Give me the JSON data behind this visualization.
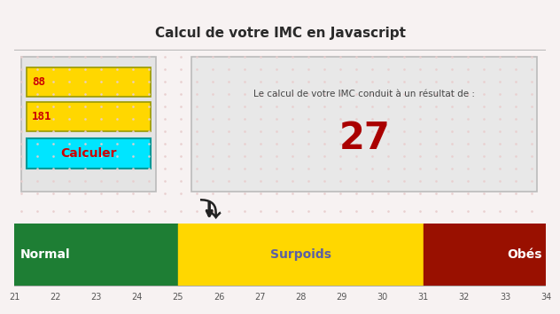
{
  "title": "Calcul de votre IMC en Javascript",
  "title_fontsize": 11,
  "title_bg": "#ececec",
  "main_bg": "#f7f2f2",
  "input1": "88",
  "input2": "181",
  "button_text": "Calculer",
  "button_bg": "#00e5ff",
  "button_text_color": "#cc0000",
  "input_bg": "#ffd700",
  "input_text_color": "#cc0000",
  "result_text": "Le calcul de votre IMC conduit à un résultat de :",
  "result_value": "27",
  "result_value_color": "#aa0000",
  "result_box_bg": "#e8e8e8",
  "result_box_edge": "#bbbbbb",
  "left_box_bg": "#e4e4e4",
  "left_box_edge": "#bbbbbb",
  "arrow_symbol": "✔",
  "arrow_color": "#222222",
  "bmi_segments": [
    {
      "label": "Normal",
      "start": 21,
      "end": 25,
      "color": "#1e7e34",
      "text_color": "#ffffff"
    },
    {
      "label": "Surpoids",
      "start": 25,
      "end": 31,
      "color": "#ffd700",
      "text_color": "#5b5fa5"
    },
    {
      "label": "Obés",
      "start": 31,
      "end": 34,
      "color": "#991000",
      "text_color": "#ffffff"
    }
  ],
  "xmin": 21,
  "xmax": 34,
  "xticks": [
    21,
    22,
    23,
    24,
    25,
    26,
    27,
    28,
    29,
    30,
    31,
    32,
    33,
    34
  ],
  "dot_color": "#e8cece"
}
